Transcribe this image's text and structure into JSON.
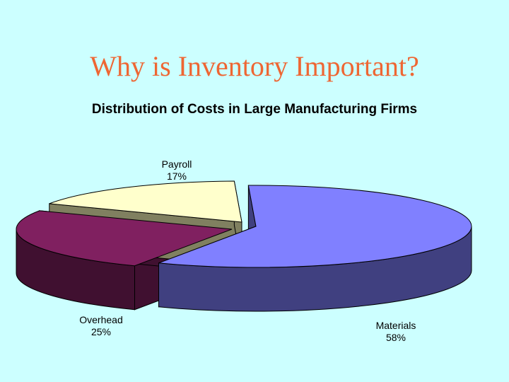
{
  "slide": {
    "title": "Why is Inventory Important?"
  },
  "chart_data": {
    "type": "pie",
    "title": "Distribution of Costs in Large Manufacturing Firms",
    "categories": [
      "Materials",
      "Overhead",
      "Payroll"
    ],
    "values": [
      58,
      25,
      17
    ],
    "value_labels": [
      "58%",
      "25%",
      "17%"
    ],
    "exploded": true,
    "three_d": true,
    "colors": {
      "Materials": "#8080ff",
      "Overhead": "#802060",
      "Payroll": "#ffffcc"
    },
    "side_colors": {
      "Materials": "#404080",
      "Overhead": "#401030",
      "Payroll": "#808060"
    }
  }
}
